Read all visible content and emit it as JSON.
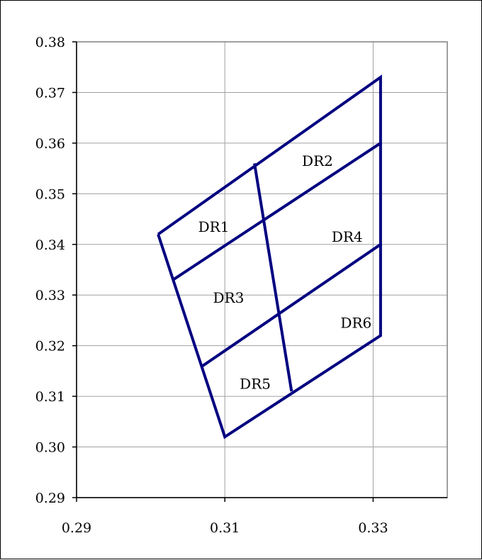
{
  "chart_data": {
    "type": "line",
    "title": "",
    "xlabel": "",
    "ylabel": "",
    "xlim": [
      0.29,
      0.34
    ],
    "ylim": [
      0.29,
      0.38
    ],
    "x_ticks": [
      {
        "value": 0.29,
        "label": "0.29"
      },
      {
        "value": 0.31,
        "label": "0.31"
      },
      {
        "value": 0.33,
        "label": "0.33"
      }
    ],
    "y_ticks": [
      {
        "value": 0.29,
        "label": "0.29"
      },
      {
        "value": 0.3,
        "label": "0.30"
      },
      {
        "value": 0.31,
        "label": "0.31"
      },
      {
        "value": 0.32,
        "label": "0.32"
      },
      {
        "value": 0.33,
        "label": "0.33"
      },
      {
        "value": 0.34,
        "label": "0.34"
      },
      {
        "value": 0.35,
        "label": "0.35"
      },
      {
        "value": 0.36,
        "label": "0.36"
      },
      {
        "value": 0.37,
        "label": "0.37"
      },
      {
        "value": 0.38,
        "label": "0.38"
      }
    ],
    "x_grid": [
      0.31,
      0.33
    ],
    "y_grid": [
      0.3,
      0.31,
      0.32,
      0.33,
      0.34,
      0.35,
      0.36,
      0.37
    ],
    "grid": true,
    "line_color": "#000080",
    "segments": [
      {
        "name": "outline",
        "points": [
          [
            0.301,
            0.342
          ],
          [
            0.331,
            0.373
          ],
          [
            0.331,
            0.322
          ],
          [
            0.31,
            0.302
          ],
          [
            0.301,
            0.342
          ]
        ]
      },
      {
        "name": "upper-divider",
        "points": [
          [
            0.303,
            0.333
          ],
          [
            0.331,
            0.36
          ]
        ]
      },
      {
        "name": "middle-divider",
        "points": [
          [
            0.307,
            0.316
          ],
          [
            0.331,
            0.34
          ]
        ]
      },
      {
        "name": "center-divider",
        "points": [
          [
            0.314,
            0.356
          ],
          [
            0.319,
            0.311
          ]
        ]
      }
    ],
    "regions": [
      {
        "label": "DR1",
        "x": 0.3085,
        "y": 0.3435
      },
      {
        "label": "DR2",
        "x": 0.3225,
        "y": 0.3565
      },
      {
        "label": "DR3",
        "x": 0.3105,
        "y": 0.3295
      },
      {
        "label": "DR4",
        "x": 0.3265,
        "y": 0.3415
      },
      {
        "label": "DR5",
        "x": 0.3141,
        "y": 0.3125
      },
      {
        "label": "DR6",
        "x": 0.3277,
        "y": 0.3245
      }
    ]
  }
}
